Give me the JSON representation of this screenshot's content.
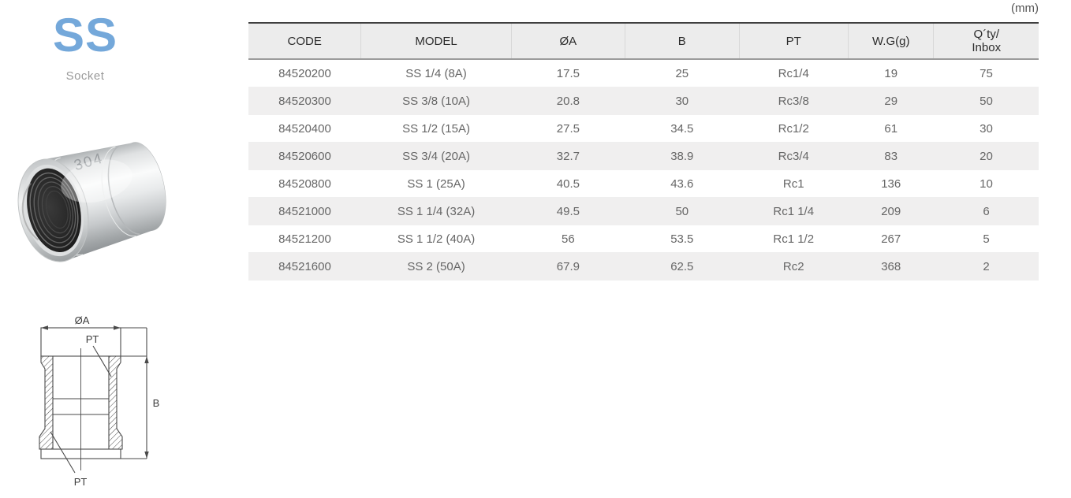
{
  "unit_label": "(mm)",
  "product": {
    "code_title": "SS",
    "name": "Socket"
  },
  "colors": {
    "accent_blue": "#74a8da",
    "table_header_bg": "#ececec",
    "table_alt_row_bg": "#f0efef",
    "table_top_border": "#3f3f3f",
    "table_header_border": "#9b9b9b"
  },
  "photo": {
    "marking": "304"
  },
  "diagram": {
    "dim_diameter": "ØA",
    "thread_label_top": "PT",
    "dim_height": "B",
    "thread_label_bottom": "PT"
  },
  "table": {
    "columns": [
      {
        "key": "code",
        "label": "CODE"
      },
      {
        "key": "model",
        "label": "MODEL"
      },
      {
        "key": "dia-a",
        "label": "ØA"
      },
      {
        "key": "b",
        "label": "B"
      },
      {
        "key": "pt",
        "label": "PT"
      },
      {
        "key": "wg",
        "label": "W.G(g)"
      },
      {
        "key": "qty-inbox",
        "label": "Q´ty/",
        "label_line2": "Inbox"
      }
    ],
    "rows": [
      [
        "84520200",
        "SS 1/4 (8A)",
        "17.5",
        "25",
        "Rc1/4",
        "19",
        "75"
      ],
      [
        "84520300",
        "SS 3/8 (10A)",
        "20.8",
        "30",
        "Rc3/8",
        "29",
        "50"
      ],
      [
        "84520400",
        "SS 1/2 (15A)",
        "27.5",
        "34.5",
        "Rc1/2",
        "61",
        "30"
      ],
      [
        "84520600",
        "SS 3/4 (20A)",
        "32.7",
        "38.9",
        "Rc3/4",
        "83",
        "20"
      ],
      [
        "84520800",
        "SS 1 (25A)",
        "40.5",
        "43.6",
        "Rc1",
        "136",
        "10"
      ],
      [
        "84521000",
        "SS 1 1/4 (32A)",
        "49.5",
        "50",
        "Rc1 1/4",
        "209",
        "6"
      ],
      [
        "84521200",
        "SS 1 1/2 (40A)",
        "56",
        "53.5",
        "Rc1 1/2",
        "267",
        "5"
      ],
      [
        "84521600",
        "SS 2 (50A)",
        "67.9",
        "62.5",
        "Rc2",
        "368",
        "2"
      ]
    ]
  }
}
